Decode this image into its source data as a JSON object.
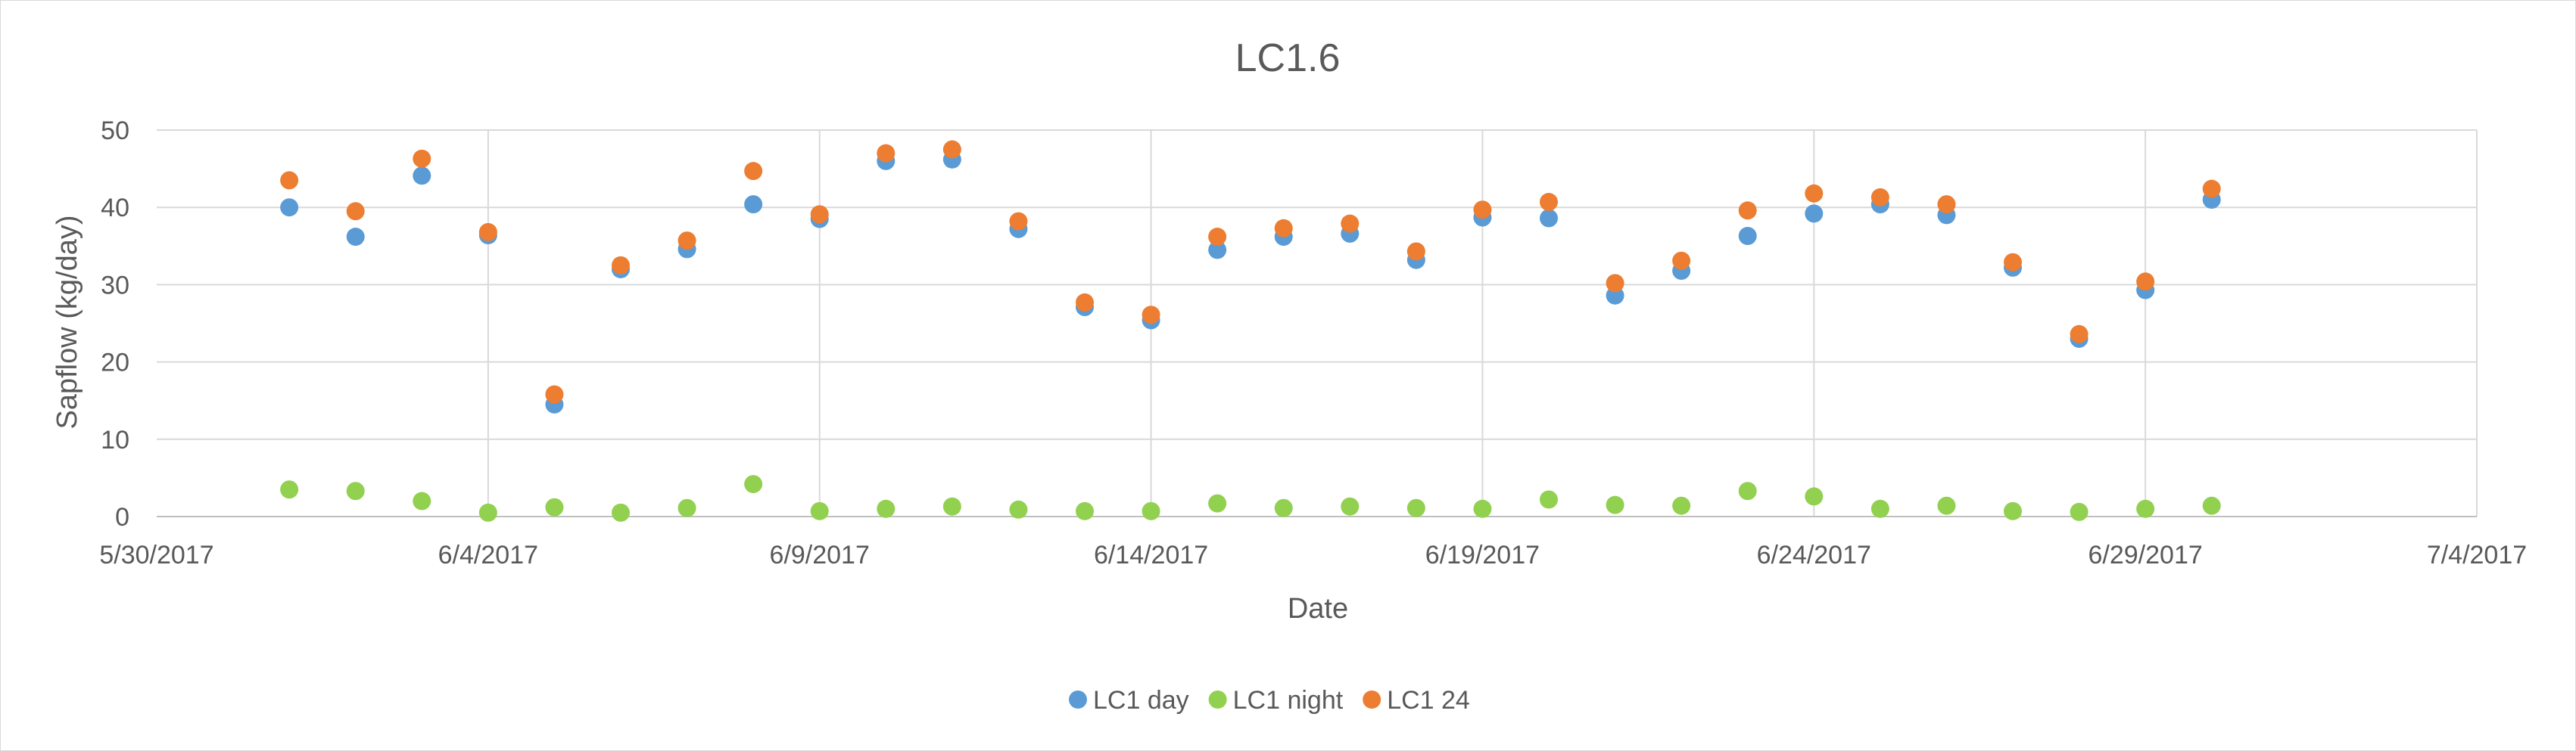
{
  "chart_data": {
    "type": "scatter",
    "title": "LC1.6",
    "xlabel": "Date",
    "ylabel": "Sapflow (kg/day)",
    "x_axis": {
      "type": "date",
      "min": "2017-05-30",
      "max": "2017-07-04",
      "major_step_days": 5,
      "tick_labels": [
        "5/30/2017",
        "6/4/2017",
        "6/9/2017",
        "6/14/2017",
        "6/19/2017",
        "6/24/2017",
        "6/29/2017",
        "7/4/2017"
      ]
    },
    "y_axis": {
      "min": 0,
      "max": 50,
      "step": 10,
      "tick_labels": [
        "0",
        "10",
        "20",
        "30",
        "40",
        "50"
      ]
    },
    "grid": true,
    "legend_position": "bottom",
    "x": [
      "2017-06-01",
      "2017-06-02",
      "2017-06-03",
      "2017-06-04",
      "2017-06-05",
      "2017-06-06",
      "2017-06-07",
      "2017-06-08",
      "2017-06-09",
      "2017-06-10",
      "2017-06-11",
      "2017-06-12",
      "2017-06-13",
      "2017-06-14",
      "2017-06-15",
      "2017-06-16",
      "2017-06-17",
      "2017-06-18",
      "2017-06-19",
      "2017-06-20",
      "2017-06-21",
      "2017-06-22",
      "2017-06-23",
      "2017-06-24",
      "2017-06-25",
      "2017-06-26",
      "2017-06-27",
      "2017-06-28",
      "2017-06-29",
      "2017-06-30"
    ],
    "series": [
      {
        "name": "LC1 day",
        "color": "#5b9bd5",
        "values": [
          40.0,
          36.2,
          44.1,
          36.4,
          14.5,
          32.0,
          34.6,
          40.4,
          38.5,
          46.0,
          46.2,
          37.2,
          27.1,
          25.4,
          34.5,
          36.2,
          36.6,
          33.2,
          38.7,
          38.6,
          28.6,
          31.8,
          36.3,
          39.2,
          40.4,
          39.0,
          32.2,
          23.0,
          29.3,
          41.0
        ]
      },
      {
        "name": "LC1 night",
        "color": "#92d050",
        "values": [
          3.5,
          3.3,
          2.0,
          0.5,
          1.2,
          0.5,
          1.1,
          4.2,
          0.7,
          1.0,
          1.3,
          0.9,
          0.7,
          0.7,
          1.7,
          1.1,
          1.3,
          1.1,
          1.0,
          2.2,
          1.5,
          1.4,
          3.3,
          2.6,
          1.0,
          1.4,
          0.7,
          0.6,
          1.0,
          1.4
        ]
      },
      {
        "name": "LC1 24",
        "color": "#ed7d31",
        "values": [
          43.5,
          39.5,
          46.3,
          36.8,
          15.8,
          32.5,
          35.7,
          44.7,
          39.1,
          47.0,
          47.5,
          38.2,
          27.7,
          26.1,
          36.2,
          37.3,
          37.9,
          34.3,
          39.7,
          40.7,
          30.2,
          33.1,
          39.6,
          41.8,
          41.3,
          40.4,
          32.9,
          23.6,
          30.4,
          42.4
        ]
      }
    ]
  }
}
